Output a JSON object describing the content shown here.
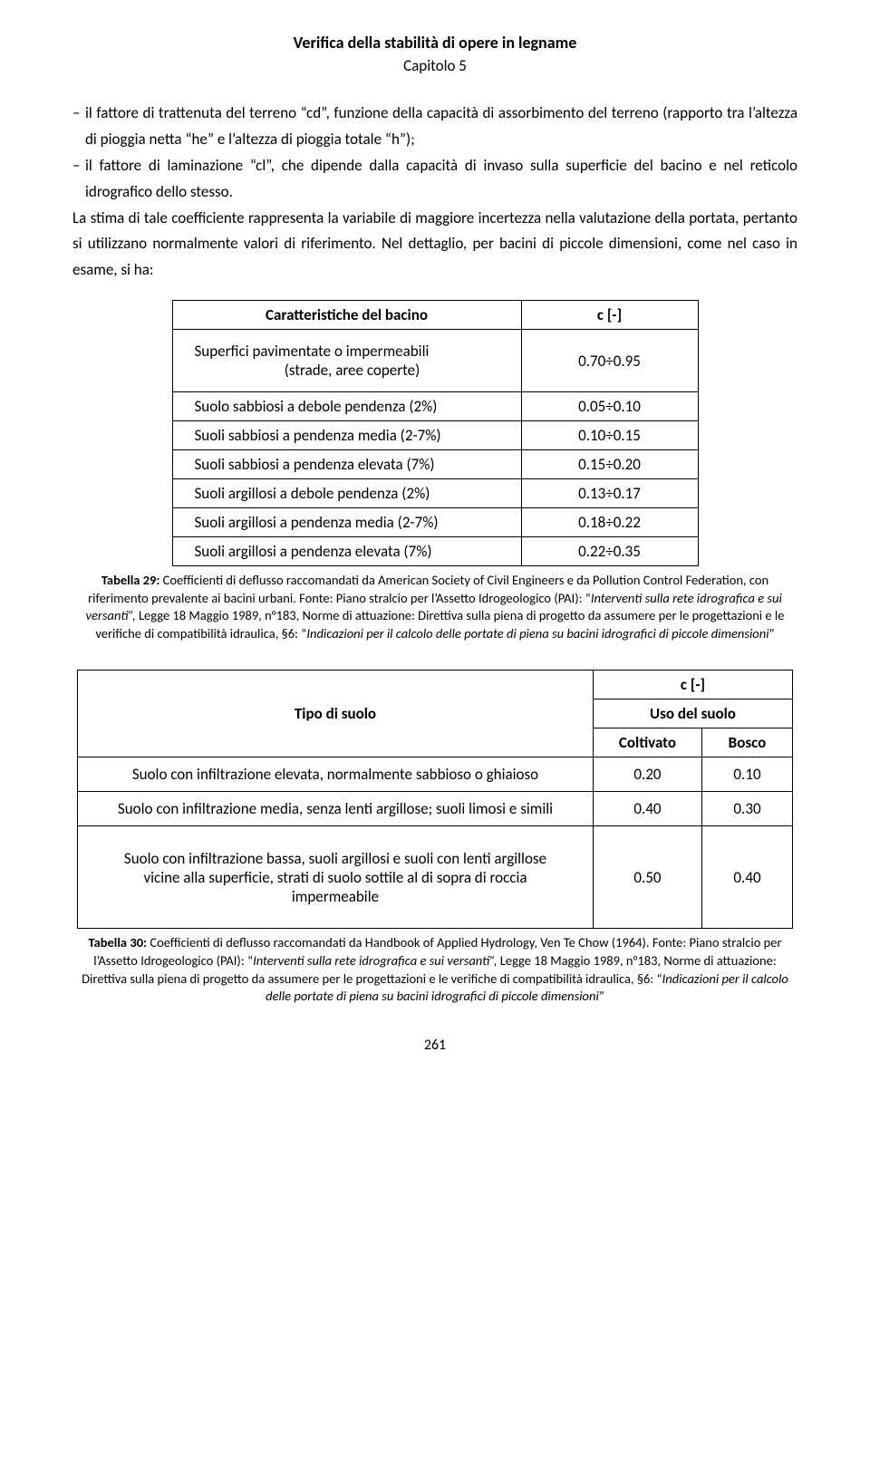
{
  "header": {
    "title": "Verifica della stabilità di opere in legname",
    "chapter": "Capitolo 5"
  },
  "paragraphs": {
    "bullet1": "il fattore di trattenuta del terreno “cd”, funzione della capacità di assorbimento del terreno (rapporto tra l’altezza di pioggia netta “he” e l’altezza di pioggia totale “h”);",
    "bullet2": "il fattore di laminazione “cl”, che dipende dalla capacità di invaso sulla superficie del bacino e nel reticolo idrografico dello stesso.",
    "after": "La stima di tale coefficiente rappresenta la variabile di maggiore incertezza nella valutazione della portata, pertanto si utilizzano normalmente valori di riferimento. Nel dettaglio, per bacini di piccole dimensioni, come nel caso in esame, si ha:"
  },
  "table1": {
    "header_left": "Caratteristiche del bacino",
    "header_right": "c [-]",
    "rows": [
      {
        "label_line1": "Superfici pavimentate o impermeabili",
        "label_line2": "(strade, aree coperte)",
        "value": "0.70÷0.95"
      },
      {
        "label": "Suolo sabbiosi a debole pendenza (2%)",
        "value": "0.05÷0.10"
      },
      {
        "label": "Suoli sabbiosi a pendenza media (2-7%)",
        "value": "0.10÷0.15"
      },
      {
        "label": "Suoli sabbiosi a pendenza elevata (7%)",
        "value": "0.15÷0.20"
      },
      {
        "label": "Suoli argillosi a debole pendenza (2%)",
        "value": "0.13÷0.17"
      },
      {
        "label": "Suoli argillosi a pendenza media (2-7%)",
        "value": "0.18÷0.22"
      },
      {
        "label": "Suoli argillosi a pendenza elevata (7%)",
        "value": "0.22÷0.35"
      }
    ]
  },
  "caption1": {
    "bold": "Tabella 29:",
    "text1": " Coefficienti di deflusso raccomandati da American Society of Civil Engineers e da Pollution Control Federation, con riferimento prevalente ai bacini urbani. Fonte: Piano stralcio per l’Assetto Idrogeologico (PAI): “",
    "italic1": "Interventi sulla rete idrografica e sui versanti”,",
    "text2": " Legge 18 Maggio 1989, n°183, Norme di attuazione: Direttiva sulla piena di progetto da assumere per le progettazioni e le verifiche di compatibilità idraulica, §6: “",
    "italic2": "Indicazioni per il calcolo delle portate di piena su bacini idrografici di piccole dimensioni",
    "text3": "”"
  },
  "table2": {
    "h_tipo": "Tipo di suolo",
    "h_c": "c [-]",
    "h_uso": "Uso del suolo",
    "h_colt": "Coltivato",
    "h_bosco": "Bosco",
    "rows": [
      {
        "label": "Suolo con infiltrazione elevata, normalmente sabbioso o ghiaioso",
        "v1": "0.20",
        "v2": "0.10"
      },
      {
        "label": "Suolo con infiltrazione media, senza lenti argillose; suoli limosi e simili",
        "v1": "0.40",
        "v2": "0.30"
      },
      {
        "label_line1": "Suolo con infiltrazione bassa, suoli argillosi e suoli con lenti argillose",
        "label_line2": "vicine alla superficie, strati di suolo sottile al di sopra di roccia",
        "label_line3": "impermeabile",
        "v1": "0.50",
        "v2": "0.40"
      }
    ]
  },
  "caption2": {
    "bold": "Tabella 30:",
    "text1": " Coefficienti di deflusso raccomandati da Handbook of Applied Hydrology, Ven Te Chow (1964). Fonte: Piano stralcio per l’Assetto Idrogeologico (PAI): “",
    "italic1": "Interventi sulla rete idrografica e sui versanti”,",
    "text2": " Legge 18 Maggio 1989, n°183, Norme di attuazione: Direttiva sulla piena di progetto da assumere per le progettazioni e le verifiche di compatibilità idraulica, §6: “",
    "italic2": "Indicazioni per il calcolo delle portate di piena su bacini idrografici di piccole dimensioni",
    "text3": "”"
  },
  "page_number": "261"
}
